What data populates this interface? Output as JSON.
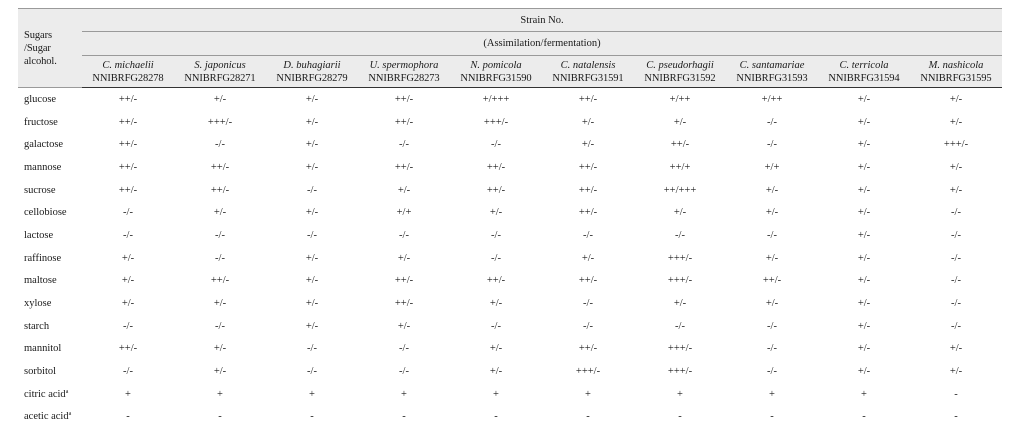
{
  "header": {
    "corner": [
      "Sugars",
      "/Sugar",
      "alcohol."
    ],
    "top": "Strain No.",
    "sub": "(Assimilation/fermentation)"
  },
  "strains": [
    {
      "species": "C. michaelii",
      "id": "NNIBRFG28278"
    },
    {
      "species": "S. japonicus",
      "id": "NNIBRFG28271"
    },
    {
      "species": "D. buhagiarii",
      "id": "NNIBRFG28279"
    },
    {
      "species": "U. spermophora",
      "id": "NNIBRFG28273"
    },
    {
      "species": "N. pomicola",
      "id": "NNIBRFG31590"
    },
    {
      "species": "C. natalensis",
      "id": "NNIBRFG31591"
    },
    {
      "species": "C. pseudorhagii",
      "id": "NNIBRFG31592"
    },
    {
      "species": "C. santamariae",
      "id": "NNIBRFG31593"
    },
    {
      "species": "C. terricola",
      "id": "NNIBRFG31594"
    },
    {
      "species": "M. nashicola",
      "id": "NNIBRFG31595"
    }
  ],
  "rows": [
    {
      "sugar": "glucose",
      "values": [
        "++/-",
        "+/-",
        "+/-",
        "++/-",
        "+/+++",
        "++/-",
        "+/++",
        "+/++",
        "+/-",
        "+/-"
      ]
    },
    {
      "sugar": "fructose",
      "values": [
        "++/-",
        "+++/-",
        "+/-",
        "++/-",
        "+++/-",
        "+/-",
        "+/-",
        "-/-",
        "+/-",
        "+/-"
      ]
    },
    {
      "sugar": "galactose",
      "values": [
        "++/-",
        "-/-",
        "+/-",
        "-/-",
        "-/-",
        "+/-",
        "++/-",
        "-/-",
        "+/-",
        "+++/-"
      ]
    },
    {
      "sugar": "mannose",
      "values": [
        "++/-",
        "++/-",
        "+/-",
        "++/-",
        "++/-",
        "++/-",
        "++/+",
        "+/+",
        "+/-",
        "+/-"
      ]
    },
    {
      "sugar": "sucrose",
      "values": [
        "++/-",
        "++/-",
        "-/-",
        "+/-",
        "++/-",
        "++/-",
        "++/+++",
        "+/-",
        "+/-",
        "+/-"
      ]
    },
    {
      "sugar": "cellobiose",
      "values": [
        "-/-",
        "+/-",
        "+/-",
        "+/+",
        "+/-",
        "++/-",
        "+/-",
        "+/-",
        "+/-",
        "-/-"
      ]
    },
    {
      "sugar": "lactose",
      "values": [
        "-/-",
        "-/-",
        "-/-",
        "-/-",
        "-/-",
        "-/-",
        "-/-",
        "-/-",
        "+/-",
        "-/-"
      ]
    },
    {
      "sugar": "raffinose",
      "values": [
        "+/-",
        "-/-",
        "+/-",
        "+/-",
        "-/-",
        "+/-",
        "+++/-",
        "+/-",
        "+/-",
        "-/-"
      ]
    },
    {
      "sugar": "maltose",
      "values": [
        "+/-",
        "++/-",
        "+/-",
        "++/-",
        "++/-",
        "++/-",
        "+++/-",
        "++/-",
        "+/-",
        "-/-"
      ]
    },
    {
      "sugar": "xylose",
      "values": [
        "+/-",
        "+/-",
        "+/-",
        "++/-",
        "+/-",
        "-/-",
        "+/-",
        "+/-",
        "+/-",
        "-/-"
      ]
    },
    {
      "sugar": "starch",
      "values": [
        "-/-",
        "-/-",
        "+/-",
        "+/-",
        "-/-",
        "-/-",
        "-/-",
        "-/-",
        "+/-",
        "-/-"
      ]
    },
    {
      "sugar": "mannitol",
      "values": [
        "++/-",
        "+/-",
        "-/-",
        "-/-",
        "+/-",
        "++/-",
        "+++/-",
        "-/-",
        "+/-",
        "+/-"
      ]
    },
    {
      "sugar": "sorbitol",
      "values": [
        "-/-",
        "+/-",
        "-/-",
        "-/-",
        "+/-",
        "+++/-",
        "+++/-",
        "-/-",
        "+/-",
        "+/-"
      ]
    },
    {
      "sugar": "citric acid",
      "sup": "a",
      "values": [
        "+",
        "+",
        "+",
        "+",
        "+",
        "+",
        "+",
        "+",
        "+",
        "-"
      ]
    },
    {
      "sugar": "acetic acid",
      "sup": "a",
      "values": [
        "-",
        "-",
        "-",
        "-",
        "-",
        "-",
        "-",
        "-",
        "-",
        "-"
      ]
    }
  ]
}
